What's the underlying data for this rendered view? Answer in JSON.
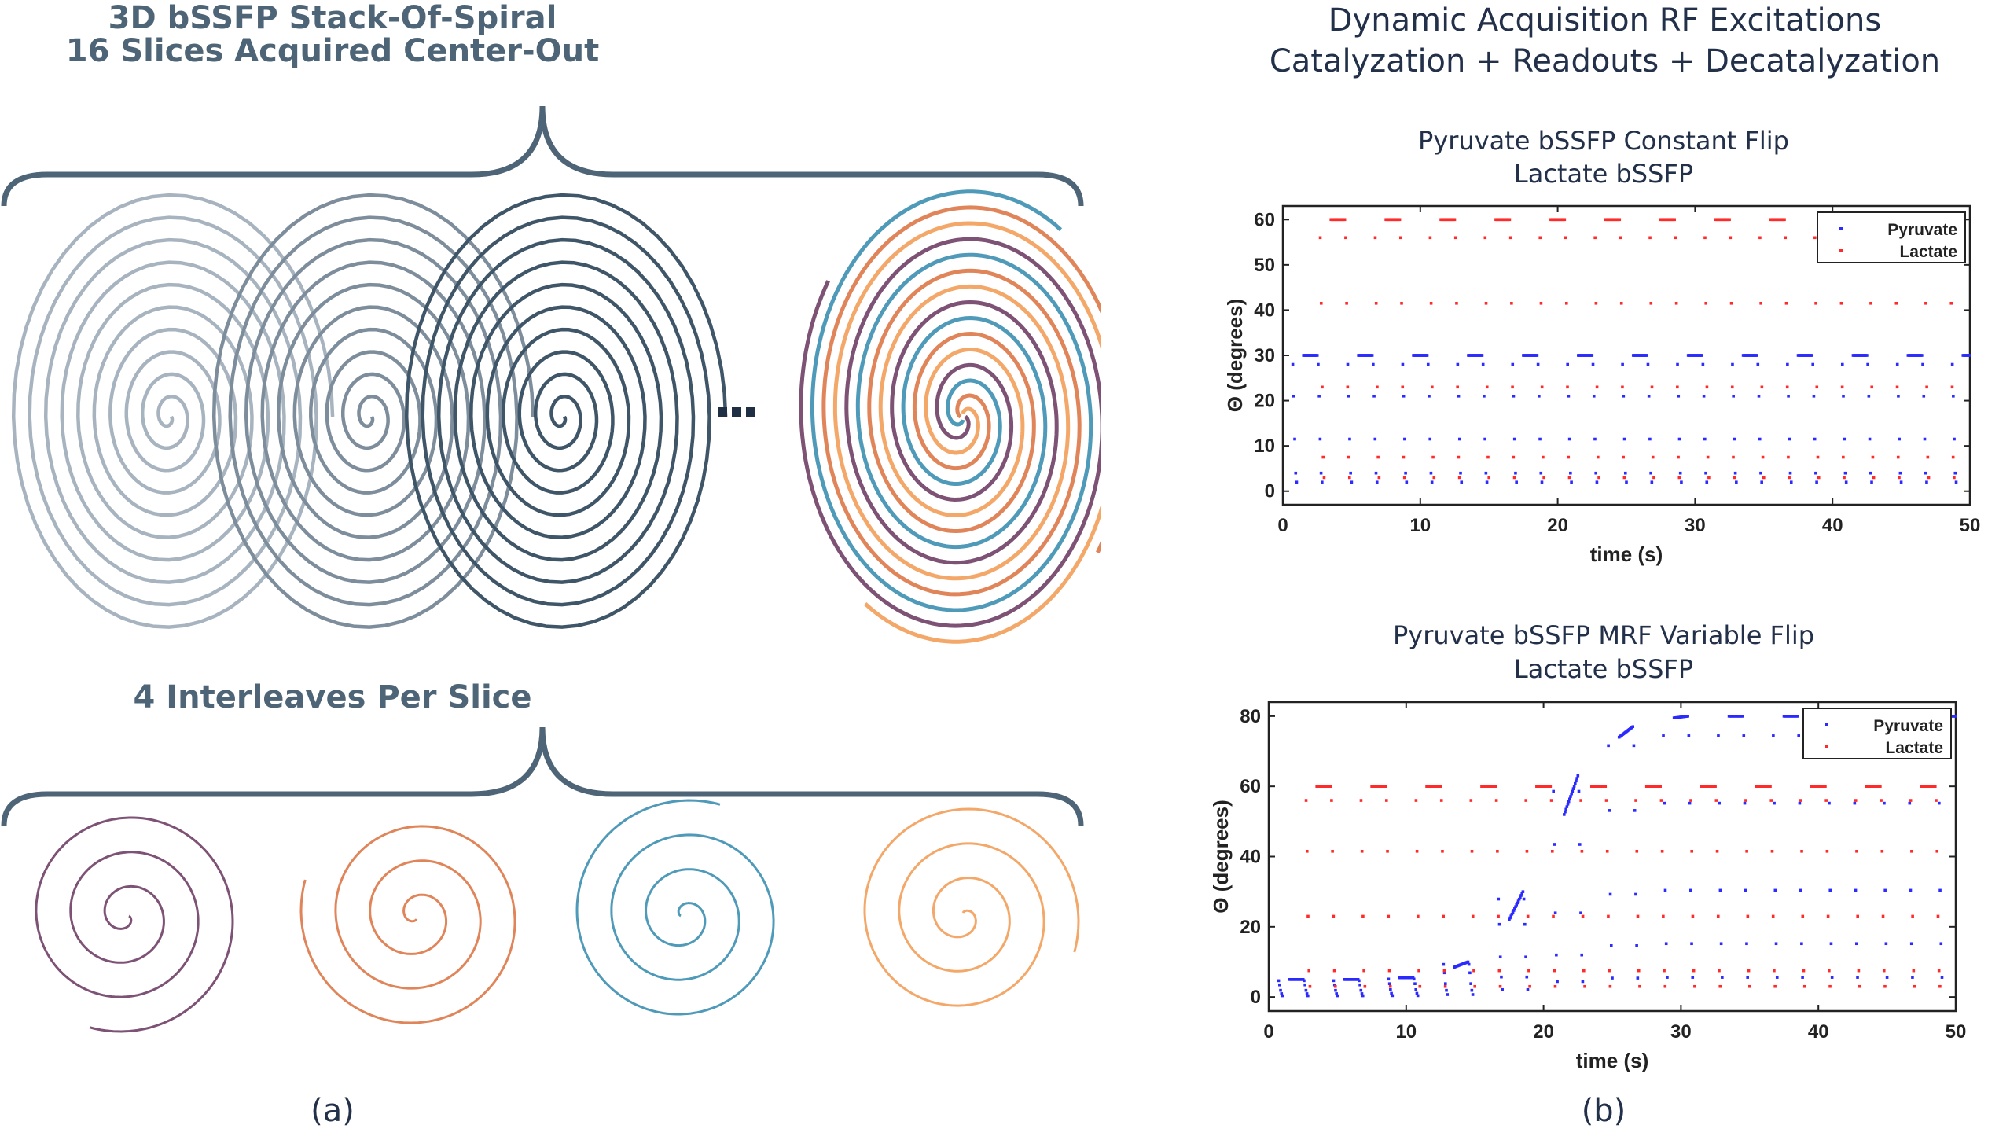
{
  "panel_a": {
    "title_line1": "3D bSSFP Stack-Of-Spiral",
    "title_line2": "16 Slices Acquired Center-Out",
    "ellipsis": "...",
    "interleaves_title": "4 Interleaves Per Slice",
    "caption": "(a)",
    "colors": {
      "slice_light": "#a7b4bf",
      "slice_mid": "#7d8d9b",
      "slice_dark": "#3f5568",
      "brace": "#4e6477",
      "interleave_purple": "#7d5275",
      "interleave_orange_red": "#e0855a",
      "interleave_blue": "#4f9ab8",
      "interleave_orange": "#f3a869"
    }
  },
  "panel_b": {
    "title_line1": "Dynamic Acquisition RF Excitations",
    "title_line2": "Catalyzation + Readouts + Decatalyzation",
    "caption": "(b)"
  },
  "chart_data": [
    {
      "type": "scatter",
      "title": "Pyruvate bSSFP Constant Flip",
      "subtitle": "Lactate bSSFP",
      "xlabel": "time (s)",
      "ylabel": "Θ (degrees)",
      "xlim": [
        0,
        50
      ],
      "ylim": [
        -3,
        63
      ],
      "xticks": [
        "0",
        "10",
        "20",
        "30",
        "40",
        "50"
      ],
      "yticks": [
        "0",
        "10",
        "20",
        "30",
        "40",
        "50",
        "60"
      ],
      "legend_position": "top-right",
      "series": [
        {
          "name": "Pyruvate",
          "color": "#2b2bff",
          "readout_times": [
            2,
            6,
            10,
            14,
            18,
            22,
            26,
            30,
            34,
            38,
            42,
            46,
            50
          ],
          "readout_flip": 30,
          "catalyzation_flips": [
            2,
            4,
            11.5,
            21,
            28
          ]
        },
        {
          "name": "Lactate",
          "color": "#ff2b2b",
          "readout_times": [
            4,
            8,
            12,
            16,
            20,
            24,
            28,
            32,
            36,
            40,
            44,
            48
          ],
          "readout_flip": 60,
          "catalyzation_flips": [
            3,
            7.5,
            23,
            41.5,
            56
          ]
        }
      ]
    },
    {
      "type": "scatter",
      "title": "Pyruvate bSSFP MRF Variable Flip",
      "subtitle": "Lactate bSSFP",
      "xlabel": "time (s)",
      "ylabel": "Θ (degrees)",
      "xlim": [
        0,
        50
      ],
      "ylim": [
        -4,
        84
      ],
      "xticks": [
        "0",
        "10",
        "20",
        "30",
        "40",
        "50"
      ],
      "yticks": [
        "0",
        "20",
        "40",
        "60",
        "80"
      ],
      "legend_position": "top-right",
      "series": [
        {
          "name": "Pyruvate",
          "color": "#2b2bff",
          "readout_times": [
            2,
            6,
            10,
            14,
            18,
            22,
            26,
            30,
            34,
            38,
            42,
            46,
            50
          ],
          "readout_flip_start": [
            5,
            5,
            5.5,
            8.5,
            22,
            52,
            74,
            79.5,
            80,
            80,
            80,
            80,
            80
          ],
          "readout_flip_end": [
            5,
            5,
            5.5,
            10,
            30,
            63,
            77,
            80,
            80,
            80,
            80,
            80,
            80
          ]
        },
        {
          "name": "Lactate",
          "color": "#ff2b2b",
          "readout_times": [
            4,
            8,
            12,
            16,
            20,
            24,
            28,
            32,
            36,
            40,
            44,
            48
          ],
          "readout_flip": 60,
          "catalyzation_flips": [
            3,
            7.5,
            23,
            41.5,
            56
          ]
        }
      ]
    }
  ]
}
